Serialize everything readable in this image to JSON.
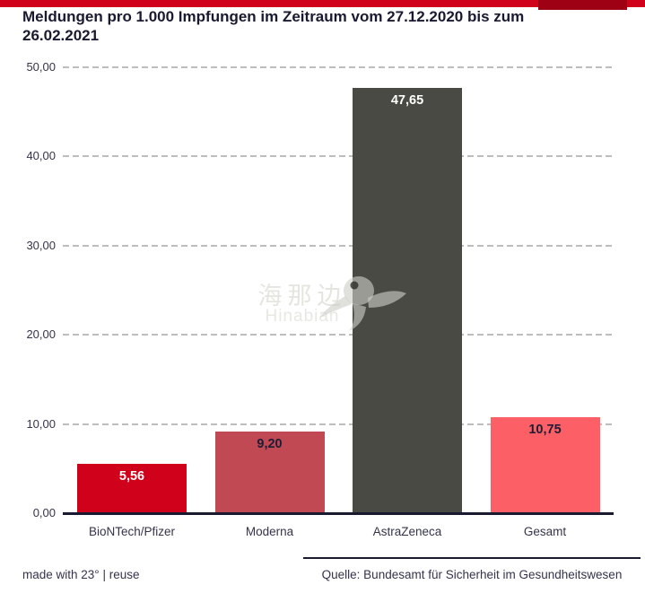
{
  "header": {
    "bar_color": "#d0021b",
    "accent_color": "#9e0014"
  },
  "title": "Meldungen pro 1.000 Impfungen im Zeitraum vom 27.12.2020 bis zum 26.02.2021",
  "chart_data": {
    "type": "bar",
    "title": "Meldungen pro 1.000 Impfungen im Zeitraum vom 27.12.2020 bis zum 26.02.2021",
    "categories": [
      "BioNTech/Pfizer",
      "Moderna",
      "AstraZeneca",
      "Gesamt"
    ],
    "values": [
      5.56,
      9.2,
      47.65,
      10.75
    ],
    "value_labels": [
      "5,56",
      "9,20",
      "47,65",
      "10,75"
    ],
    "bar_colors": [
      "#d0021b",
      "#c04953",
      "#4a4a44",
      "#fc5f66"
    ],
    "value_label_colors": [
      "#ffffff",
      "#1d1d35",
      "#ffffff",
      "#1d1d35"
    ],
    "xlabel": "",
    "ylabel": "",
    "ylim": [
      0,
      50
    ],
    "ytick_values": [
      0,
      10,
      20,
      30,
      40,
      50
    ],
    "ytick_labels": [
      "0,00",
      "10,00",
      "20,00",
      "30,00",
      "40,00",
      "50,00"
    ],
    "grid": "horizontal-dashed",
    "legend": "none",
    "text_color": "#34344c",
    "grid_color": "#bdbdbd",
    "axis_color": "#191930"
  },
  "watermark": {
    "cjk": "海那边",
    "latin": "Hinabian",
    "icon": "bird-logo"
  },
  "footer": {
    "attribution": "made with 23° | reuse",
    "source": "Quelle: Bundesamt für Sicherheit im Gesundheitswesen"
  }
}
